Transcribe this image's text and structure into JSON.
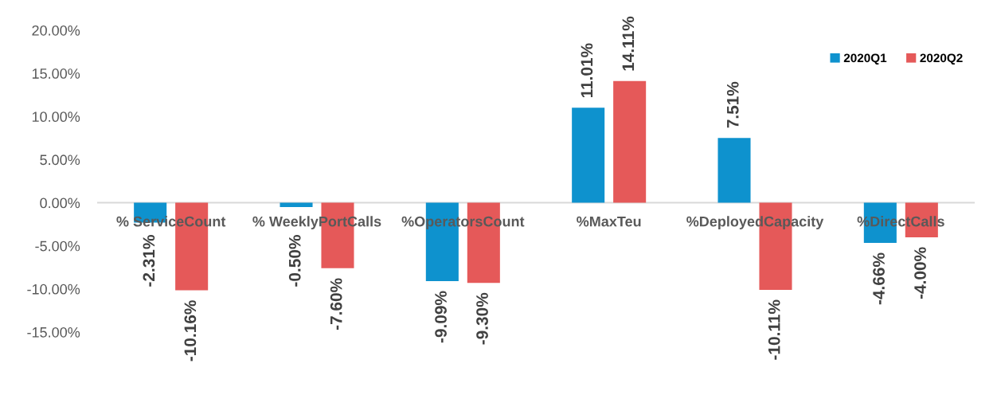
{
  "chart_data": {
    "type": "bar",
    "categories": [
      "% ServiceCount",
      "% WeeklyPortCalls",
      "%OperatorsCount",
      "%MaxTeu",
      "%DeployedCapacity",
      "%DirectCalls"
    ],
    "series": [
      {
        "name": "2020Q1",
        "color": "#0e92ce",
        "values": [
          -2.31,
          -0.5,
          -9.09,
          11.01,
          7.51,
          -4.66
        ],
        "value_labels": [
          "-2.31%",
          "-0.50%",
          "-9.09%",
          "11.01%",
          "7.51%",
          "-4.66%"
        ]
      },
      {
        "name": "2020Q2",
        "color": "#e55959",
        "values": [
          -10.16,
          -7.6,
          -9.3,
          14.11,
          -10.11,
          -4.0
        ],
        "value_labels": [
          "-10.16%",
          "-7.60%",
          "-9.30%",
          "14.11%",
          "-10.11%",
          "-4.00%"
        ]
      }
    ],
    "ylim": [
      -15,
      20
    ],
    "yticks": [
      {
        "value": -15,
        "label": "-15.00%"
      },
      {
        "value": -10,
        "label": "-10.00%"
      },
      {
        "value": -5,
        "label": "-5.00%"
      },
      {
        "value": 0,
        "label": "0.00%"
      },
      {
        "value": 5,
        "label": "5.00%"
      },
      {
        "value": 10,
        "label": "10.00%"
      },
      {
        "value": 15,
        "label": "15.00%"
      },
      {
        "value": 20,
        "label": "20.00%"
      }
    ],
    "grid": false,
    "legend": "top right"
  }
}
